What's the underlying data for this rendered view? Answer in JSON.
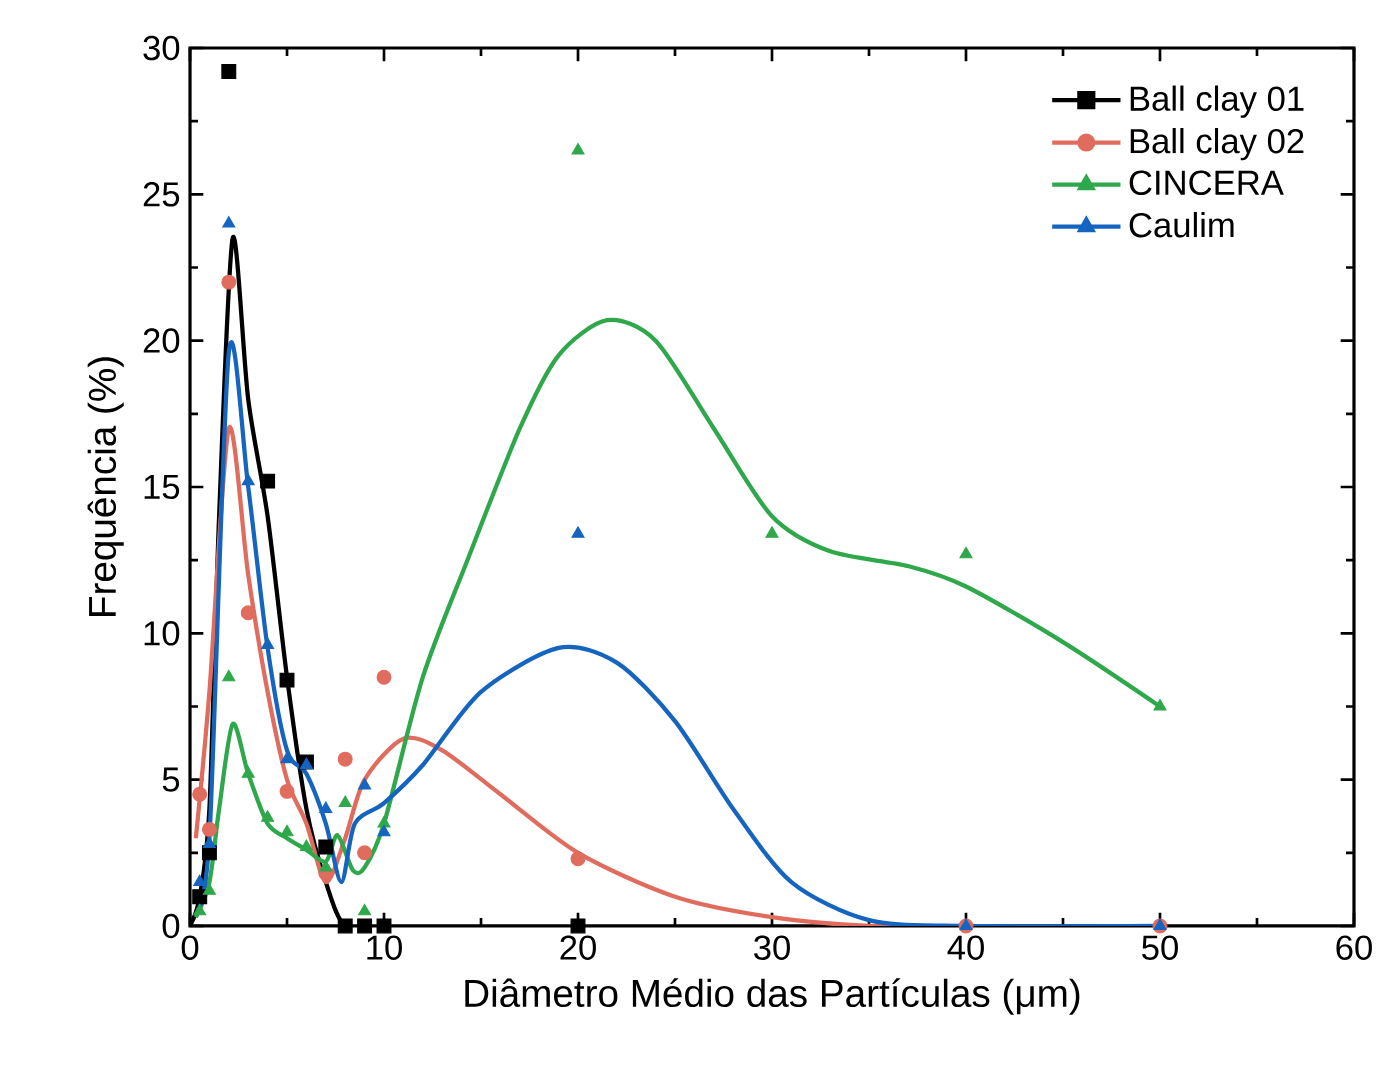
{
  "chart_data": {
    "type": "scatter",
    "xlabel": "Diâmetro Médio das Partículas (μm)",
    "ylabel": "Frequência (%)",
    "xlim": [
      0,
      60
    ],
    "ylim": [
      0,
      30
    ],
    "xticks": [
      0,
      10,
      20,
      30,
      40,
      50,
      60
    ],
    "yticks": [
      0,
      5,
      10,
      15,
      20,
      25,
      30
    ],
    "legend": "top right",
    "series": [
      {
        "name": "Ball clay 01",
        "color": "#000000",
        "marker": "square",
        "x": [
          0.5,
          1,
          2,
          4,
          5,
          6,
          7,
          8,
          9,
          10,
          20
        ],
        "values": [
          1.0,
          2.5,
          29.2,
          15.2,
          8.4,
          5.6,
          2.7,
          0,
          0,
          0,
          0
        ]
      },
      {
        "name": "Ball clay 02",
        "color": "#e06c5e",
        "marker": "circle",
        "x": [
          0.5,
          1,
          2,
          3,
          5,
          7,
          8,
          9,
          10,
          20,
          40,
          50
        ],
        "values": [
          4.5,
          3.3,
          22,
          10.7,
          4.6,
          1.8,
          5.7,
          2.5,
          8.5,
          2.3,
          0,
          0
        ]
      },
      {
        "name": "CINCERA",
        "color": "#2ea84a",
        "marker": "triangle",
        "x": [
          0.5,
          1,
          2,
          3,
          4,
          5,
          6,
          7,
          8,
          9,
          10,
          20,
          30,
          40,
          50
        ],
        "values": [
          0.5,
          1.2,
          8.5,
          5.2,
          3.7,
          3.2,
          2.7,
          2.0,
          4.2,
          0.5,
          3.5,
          26.5,
          13.4,
          12.7,
          7.5
        ]
      },
      {
        "name": "Caulim",
        "color": "#1565c0",
        "marker": "triangle",
        "x": [
          0.5,
          1,
          2,
          3,
          4,
          5,
          6,
          7,
          9,
          10,
          20,
          40,
          50
        ],
        "values": [
          1.5,
          2.8,
          24,
          15.2,
          9.6,
          5.7,
          5.5,
          4.0,
          4.8,
          3.2,
          13.4,
          0,
          0
        ]
      },
      {
        "type": "line",
        "color": "#000000",
        "x": [
          0,
          0.5,
          1,
          1.5,
          2.2,
          3,
          4,
          5,
          6,
          7,
          8,
          10
        ],
        "values": [
          0,
          1,
          4,
          14,
          23.5,
          18,
          14,
          8.5,
          4,
          1.5,
          0,
          0
        ]
      },
      {
        "type": "line",
        "color": "#e06c5e",
        "x": [
          0.3,
          1,
          2,
          3,
          4,
          5,
          6,
          7,
          8,
          9,
          11,
          13,
          16,
          20,
          25,
          30,
          35,
          40
        ],
        "values": [
          3,
          8,
          17,
          12,
          8,
          5,
          3.5,
          1.5,
          3,
          5,
          6.4,
          6,
          4.5,
          2.5,
          1,
          0.3,
          0,
          0
        ]
      },
      {
        "type": "line",
        "color": "#2ea84a",
        "x": [
          0.3,
          1,
          1.5,
          2.2,
          3,
          4,
          5,
          6,
          7,
          7.6,
          8.4,
          9,
          10,
          12,
          14.3,
          17,
          19,
          21.5,
          24,
          27,
          30,
          33,
          37,
          40,
          45,
          50
        ],
        "values": [
          0.3,
          1.5,
          4,
          6.9,
          5.2,
          3.5,
          3,
          2.6,
          2.2,
          3.1,
          1.9,
          2,
          3.5,
          8.5,
          12.5,
          17,
          19.5,
          20.7,
          20,
          17,
          14,
          12.8,
          12.3,
          11.6,
          9.7,
          7.5
        ]
      },
      {
        "type": "line",
        "color": "#1565c0",
        "x": [
          0.3,
          1,
          2,
          3,
          4,
          5,
          6,
          7,
          7.8,
          8.5,
          10,
          12,
          15,
          19,
          22,
          25,
          28,
          31,
          35,
          40,
          50
        ],
        "values": [
          0.5,
          3,
          19.6,
          15,
          9.5,
          6,
          5.2,
          3.5,
          1.5,
          3.5,
          4.2,
          5.5,
          8,
          9.5,
          9,
          7,
          4,
          1.5,
          0.2,
          0,
          0
        ]
      }
    ]
  }
}
